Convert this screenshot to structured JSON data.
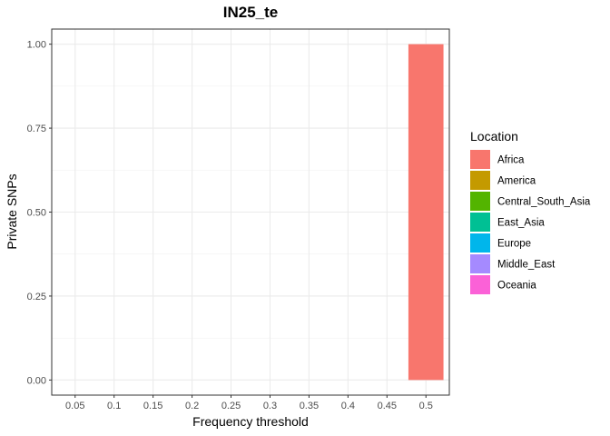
{
  "chart_data": {
    "type": "bar",
    "title": "IN25_te",
    "xlabel": "Frequency threshold",
    "ylabel": "Private SNPs",
    "categories": [
      "0.05",
      "0.1",
      "0.15",
      "0.2",
      "0.25",
      "0.3",
      "0.35",
      "0.4",
      "0.45",
      "0.5"
    ],
    "y_ticks": [
      "0.00",
      "0.25",
      "0.50",
      "0.75",
      "1.00"
    ],
    "ylim": [
      -0.045,
      1.045
    ],
    "grid": true,
    "legend": {
      "title": "Location",
      "placement": "right",
      "entries": [
        {
          "name": "Africa",
          "color": "#F8766D"
        },
        {
          "name": "America",
          "color": "#C49A00"
        },
        {
          "name": "Central_South_Asia",
          "color": "#53B400"
        },
        {
          "name": "East_Asia",
          "color": "#00C094"
        },
        {
          "name": "Europe",
          "color": "#00B6EB"
        },
        {
          "name": "Middle_East",
          "color": "#A58AFF"
        },
        {
          "name": "Oceania",
          "color": "#FB61D7"
        }
      ]
    },
    "series": [
      {
        "name": "Africa",
        "color": "#F8766D",
        "values": [
          0,
          0,
          0,
          0,
          0,
          0,
          0,
          0,
          0,
          1.0
        ]
      },
      {
        "name": "America",
        "color": "#C49A00",
        "values": [
          0,
          0,
          0,
          0,
          0,
          0,
          0,
          0,
          0,
          0
        ]
      },
      {
        "name": "Central_South_Asia",
        "color": "#53B400",
        "values": [
          0,
          0,
          0,
          0,
          0,
          0,
          0,
          0,
          0,
          0
        ]
      },
      {
        "name": "East_Asia",
        "color": "#00C094",
        "values": [
          0,
          0,
          0,
          0,
          0,
          0,
          0,
          0,
          0,
          0
        ]
      },
      {
        "name": "Europe",
        "color": "#00B6EB",
        "values": [
          0,
          0,
          0,
          0,
          0,
          0,
          0,
          0,
          0,
          0
        ]
      },
      {
        "name": "Middle_East",
        "color": "#A58AFF",
        "values": [
          0,
          0,
          0,
          0,
          0,
          0,
          0,
          0,
          0,
          0
        ]
      },
      {
        "name": "Oceania",
        "color": "#FB61D7",
        "values": [
          0,
          0,
          0,
          0,
          0,
          0,
          0,
          0,
          0,
          0
        ]
      }
    ]
  }
}
